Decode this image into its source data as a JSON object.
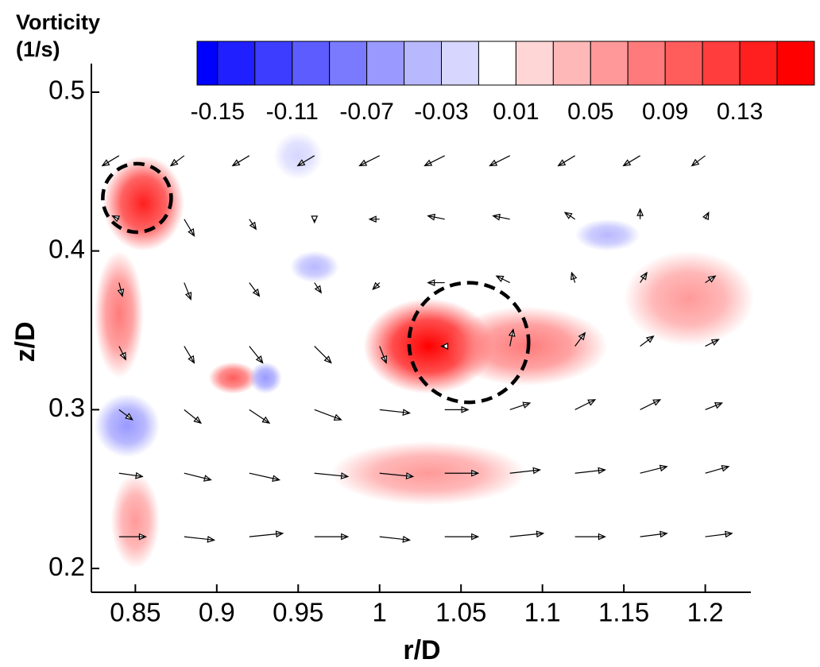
{
  "chart_data": {
    "type": "quiver",
    "xlabel": "r/D",
    "ylabel": "z/D",
    "xlim": [
      0.823,
      1.228
    ],
    "ylim": [
      0.185,
      0.518
    ],
    "xticks": [
      0.85,
      0.9,
      0.95,
      1,
      1.05,
      1.1,
      1.15,
      1.2
    ],
    "yticks": [
      0.2,
      0.3,
      0.4,
      0.5
    ],
    "colorbar": {
      "title": [
        "Vorticity",
        "(1/s)"
      ],
      "clim": [
        -0.161,
        0.173
      ],
      "levels": [
        -0.17,
        -0.15,
        -0.13,
        -0.11,
        -0.09,
        -0.07,
        -0.05,
        -0.03,
        -0.01,
        0.01,
        0.03,
        0.05,
        0.07,
        0.09,
        0.11,
        0.13,
        0.15,
        0.17
      ],
      "colors": [
        "#0000ff",
        "#1f1fff",
        "#3d3dff",
        "#5c5cff",
        "#7a7aff",
        "#9999ff",
        "#b8b8ff",
        "#d6d6ff",
        "#ffffff",
        "#ffd6d6",
        "#ffb8b8",
        "#ff9999",
        "#ff7a7a",
        "#ff5c5c",
        "#ff3d3d",
        "#ff1f1f",
        "#ff0000"
      ],
      "ticks": [
        -0.15,
        -0.11,
        -0.07,
        -0.03,
        0.01,
        0.05,
        0.09,
        0.13
      ]
    },
    "blobs": [
      {
        "r": 0.855,
        "z": 0.43,
        "rr": 0.025,
        "rz": 0.03,
        "value": 0.13
      },
      {
        "r": 1.03,
        "z": 0.34,
        "rr": 0.04,
        "rz": 0.03,
        "value": 0.15
      },
      {
        "r": 1.09,
        "z": 0.34,
        "rr": 0.05,
        "rz": 0.025,
        "value": 0.07
      },
      {
        "r": 1.19,
        "z": 0.37,
        "rr": 0.04,
        "rz": 0.03,
        "value": 0.05
      },
      {
        "r": 0.84,
        "z": 0.36,
        "rr": 0.015,
        "rz": 0.04,
        "value": 0.07
      },
      {
        "r": 0.91,
        "z": 0.32,
        "rr": 0.015,
        "rz": 0.01,
        "value": 0.09
      },
      {
        "r": 0.93,
        "z": 0.32,
        "rr": 0.01,
        "rz": 0.01,
        "value": -0.07
      },
      {
        "r": 0.845,
        "z": 0.29,
        "rr": 0.02,
        "rz": 0.02,
        "value": -0.07
      },
      {
        "r": 0.85,
        "z": 0.23,
        "rr": 0.015,
        "rz": 0.03,
        "value": 0.05
      },
      {
        "r": 0.96,
        "z": 0.39,
        "rr": 0.015,
        "rz": 0.01,
        "value": -0.05
      },
      {
        "r": 0.95,
        "z": 0.46,
        "rr": 0.015,
        "rz": 0.015,
        "value": -0.03
      },
      {
        "r": 1.14,
        "z": 0.41,
        "rr": 0.02,
        "rz": 0.01,
        "value": -0.05
      },
      {
        "r": 1.03,
        "z": 0.26,
        "rr": 0.06,
        "rz": 0.02,
        "value": 0.05
      }
    ],
    "circles": [
      {
        "r": 0.851,
        "z": 0.4334,
        "radius": 0.021
      },
      {
        "r": 1.0548,
        "z": 0.3423,
        "radius": 0.0367
      }
    ],
    "vectors": {
      "r": [
        0.84,
        0.88,
        0.92,
        0.96,
        1.0,
        1.04,
        1.08,
        1.12,
        1.16,
        1.2
      ],
      "z": [
        0.22,
        0.26,
        0.3,
        0.34,
        0.38,
        0.42,
        0.46
      ],
      "u": [
        [
          0.8,
          0.9,
          1.0,
          1.0,
          0.9,
          1.0,
          1.0,
          0.9,
          0.8,
          0.8
        ],
        [
          0.7,
          0.8,
          0.9,
          1.0,
          1.0,
          1.0,
          0.9,
          0.9,
          0.8,
          0.7
        ],
        [
          0.4,
          0.5,
          0.6,
          0.8,
          0.9,
          0.7,
          0.6,
          0.6,
          0.6,
          0.5
        ],
        [
          0.2,
          0.3,
          0.4,
          0.5,
          0.2,
          -0.1,
          0.1,
          0.3,
          0.4,
          0.4
        ],
        [
          0.1,
          0.2,
          0.3,
          0.2,
          -0.2,
          -0.5,
          -0.4,
          -0.1,
          0.2,
          0.3
        ],
        [
          -0.2,
          0.3,
          0.2,
          0.0,
          -0.3,
          -0.5,
          -0.5,
          -0.3,
          0.0,
          0.1
        ],
        [
          -0.5,
          -0.4,
          -0.5,
          -0.5,
          -0.6,
          -0.6,
          -0.6,
          -0.5,
          -0.5,
          -0.4
        ]
      ],
      "v": [
        [
          0.0,
          -0.1,
          0.1,
          0.0,
          -0.1,
          0.0,
          0.1,
          0.0,
          0.1,
          0.1
        ],
        [
          -0.1,
          -0.2,
          -0.2,
          -0.1,
          -0.1,
          0.0,
          0.1,
          0.1,
          0.2,
          0.2
        ],
        [
          -0.3,
          -0.4,
          -0.4,
          -0.3,
          -0.1,
          0.0,
          0.2,
          0.3,
          0.3,
          0.2
        ],
        [
          -0.4,
          -0.5,
          -0.5,
          -0.5,
          -0.5,
          0.0,
          0.5,
          0.4,
          0.3,
          0.2
        ],
        [
          -0.4,
          -0.5,
          -0.4,
          -0.3,
          -0.2,
          0.0,
          0.2,
          0.3,
          0.3,
          0.2
        ],
        [
          0.1,
          -0.5,
          -0.3,
          -0.1,
          0.0,
          0.1,
          0.1,
          0.2,
          0.3,
          0.2
        ],
        [
          -0.3,
          -0.3,
          -0.3,
          -0.3,
          -0.3,
          -0.3,
          -0.3,
          -0.3,
          -0.3,
          -0.3
        ]
      ]
    }
  }
}
